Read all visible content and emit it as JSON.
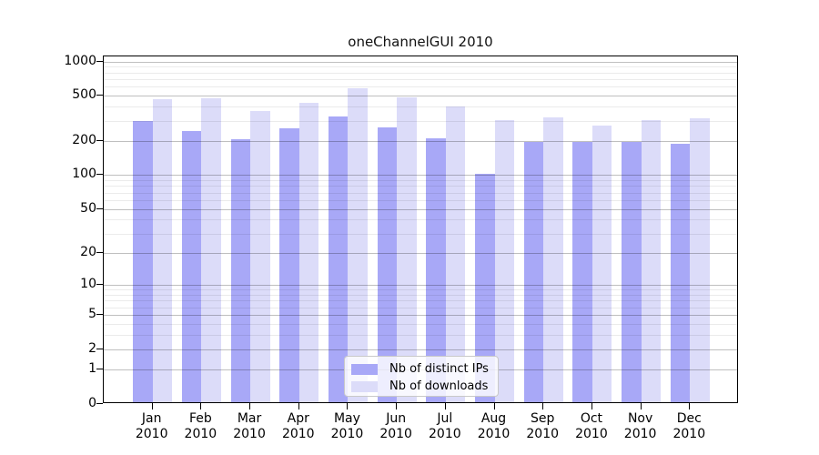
{
  "chart_data": {
    "type": "bar",
    "title": "oneChannelGUI 2010",
    "categories": [
      "Jan",
      "Feb",
      "Mar",
      "Apr",
      "May",
      "Jun",
      "Jul",
      "Aug",
      "Sep",
      "Oct",
      "Nov",
      "Dec"
    ],
    "category_year": "2010",
    "series": [
      {
        "name": "Nb of distinct IPs",
        "color": "#a8a8f7",
        "values": [
          290,
          240,
          200,
          250,
          320,
          255,
          205,
          100,
          190,
          190,
          190,
          185
        ]
      },
      {
        "name": "Nb of downloads",
        "color": "#dcdcf9",
        "values": [
          450,
          465,
          355,
          420,
          570,
          475,
          390,
          300,
          315,
          265,
          300,
          310
        ]
      }
    ],
    "xlabel": "",
    "ylabel": "",
    "yscale": "log1p",
    "ylim": [
      0,
      1118
    ],
    "y_ticks": [
      0,
      1,
      2,
      5,
      10,
      20,
      50,
      100,
      200,
      500,
      1000
    ],
    "y_tick_labels": [
      "0",
      "1",
      "2",
      "5",
      "10",
      "20",
      "50",
      "100",
      "200",
      "500",
      "1000"
    ],
    "y_minor_gridlines": [
      3,
      4,
      6,
      7,
      8,
      9,
      30,
      40,
      60,
      70,
      80,
      90,
      300,
      400,
      600,
      700,
      800,
      900
    ],
    "grid": true,
    "legend_position": "inside-bottom-center"
  },
  "colors": {
    "bar_distinct_ips": "#a8a8f7",
    "bar_downloads": "#dcdcf9",
    "major_gridline": "rgba(0,0,0,0.25)",
    "minor_gridline": "rgba(0,0,0,0.08)",
    "spine": "#000000",
    "background": "#ffffff"
  }
}
